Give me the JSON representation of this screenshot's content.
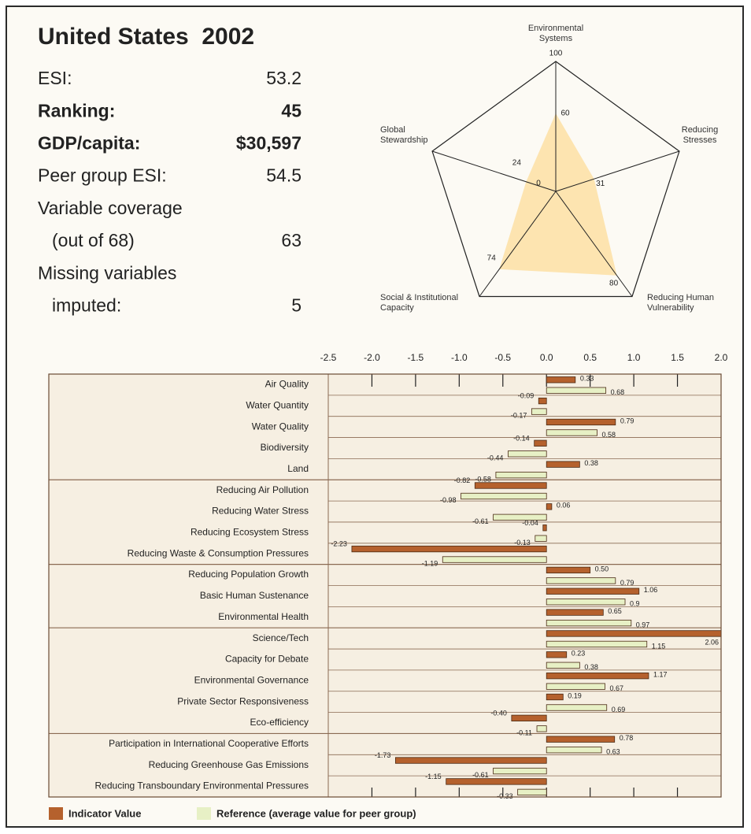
{
  "profile": {
    "title": "United States  2002",
    "rows": [
      {
        "label": "ESI:",
        "value": "53.2"
      },
      {
        "label": "Ranking:",
        "value": "45",
        "bold": true
      },
      {
        "label": "GDP/capita:",
        "value": "$30,597",
        "bold": true
      },
      {
        "label": "Peer group ESI:",
        "value": "54.5"
      },
      {
        "label": "Variable coverage"
      },
      {
        "label": "(out of 68)",
        "value": "63"
      },
      {
        "label": "Missing variables"
      },
      {
        "label": "imputed:",
        "value": "5"
      }
    ]
  },
  "chart_data": [
    {
      "type": "radar",
      "categories": [
        "Environmental Systems",
        "Reducing Stresses",
        "Reducing Human Vulnerability",
        "Social & Institutional Capacity",
        "Global Stewardship"
      ],
      "values": [
        60,
        31,
        80,
        74,
        24
      ],
      "color": "#fde4b0",
      "rlim": [
        0,
        100
      ],
      "rticks": [
        0,
        100
      ]
    },
    {
      "type": "barh",
      "categories": [
        "Air Quality",
        "Water Quantity",
        "Water Quality",
        "Biodiversity",
        "Land",
        "Reducing Air Pollution",
        "Reducing Water Stress",
        "Reducing Ecosystem Stress",
        "Reducing Waste & Consumption Pressures",
        "Reducing Population Growth",
        "Basic Human Sustenance",
        "Environmental Health",
        "Science/Tech",
        "Capacity for Debate",
        "Environmental Governance",
        "Private Sector Responsiveness",
        "Eco-efficiency",
        "Participation in International Cooperative Efforts",
        "Reducing Greenhouse Gas Emissions",
        "Reducing Transboundary Environmental Pressures"
      ],
      "group_sizes": [
        5,
        4,
        3,
        5,
        3
      ],
      "series": [
        {
          "name": "Indicator Value",
          "color": "#b5612d",
          "values": [
            0.33,
            -0.09,
            0.79,
            -0.14,
            0.38,
            -0.82,
            0.06,
            -0.04,
            -2.23,
            0.5,
            1.06,
            0.65,
            2.06,
            0.23,
            1.17,
            0.19,
            -0.4,
            0.78,
            -1.73,
            -1.15
          ],
          "value_labels": [
            "0.33",
            "-0.09",
            "0.79",
            "-0.14",
            "0.38",
            "-0.82",
            "0.06",
            "-0.04",
            "-2.23",
            "0.50",
            "1.06",
            "0.65",
            "2.06",
            "0.23",
            "1.17",
            "0.19",
            "-0.40",
            "0.78",
            "-1.73",
            "-1.15"
          ]
        },
        {
          "name": "Reference (average value for peer group)",
          "color": "#e7f0c5",
          "values": [
            0.68,
            -0.17,
            0.58,
            -0.44,
            -0.58,
            -0.98,
            -0.61,
            -0.13,
            -1.19,
            0.79,
            0.9,
            0.97,
            1.15,
            0.38,
            0.67,
            0.69,
            -0.11,
            0.63,
            -0.61,
            -0.33
          ]
        }
      ],
      "xlim": [
        -2.5,
        2
      ],
      "xticks": [
        -2.5,
        {
          "value": -2,
          "label": "-2.0"
        },
        -1.5,
        {
          "value": -1,
          "label": "-1.0"
        },
        -0.5,
        {
          "value": 0,
          "label": "0.0"
        },
        0.5,
        {
          "value": 1,
          "label": "1.0"
        },
        1.5,
        {
          "value": 2,
          "label": "2.0"
        }
      ],
      "legend": "bottom-left"
    }
  ]
}
